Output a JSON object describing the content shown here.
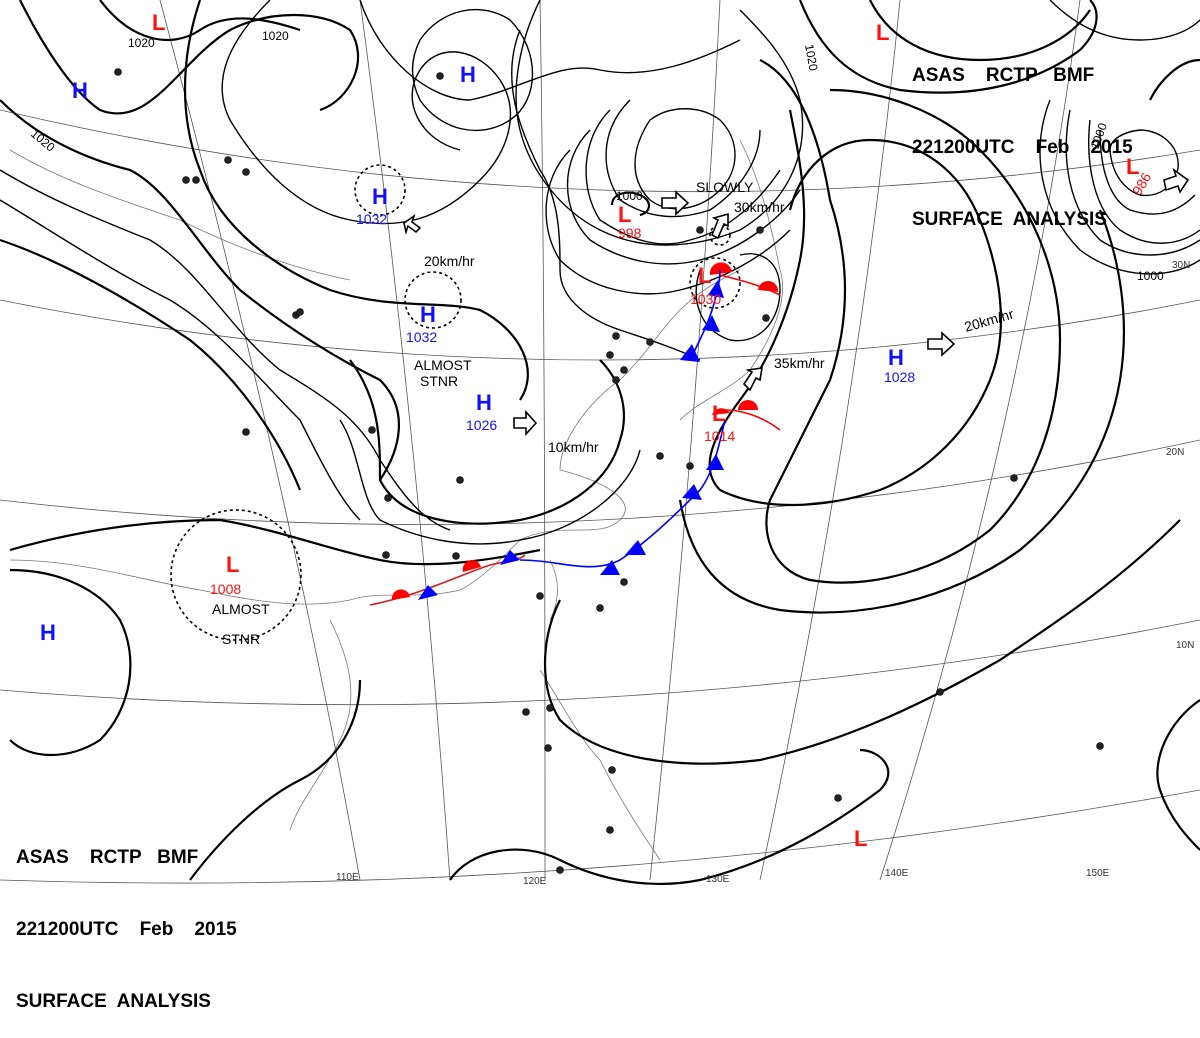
{
  "header": {
    "line1": "ASAS    RCTP   BMF",
    "line2": "221200UTC    Feb    2015",
    "line3": "SURFACE  ANALYSIS"
  },
  "grid_labels": {
    "lon": [
      "110E",
      "120E",
      "130E",
      "140E",
      "150E"
    ],
    "lat": [
      "30N",
      "20N",
      "10N"
    ]
  },
  "isobar_labels": [
    "1020",
    "1020",
    "1020",
    "1020",
    "1000",
    "1000",
    "1000"
  ],
  "systems": [
    {
      "type": "L",
      "value": ""
    },
    {
      "type": "L",
      "value": ""
    },
    {
      "type": "L",
      "value": ""
    },
    {
      "type": "L",
      "value": "998"
    },
    {
      "type": "L",
      "value": "1030"
    },
    {
      "type": "L",
      "value": "1014"
    },
    {
      "type": "L",
      "value": "986"
    },
    {
      "type": "L",
      "value": "1008"
    },
    {
      "type": "H",
      "value": ""
    },
    {
      "type": "H",
      "value": ""
    },
    {
      "type": "H",
      "value": "1032"
    },
    {
      "type": "H",
      "value": "1032"
    },
    {
      "type": "H",
      "value": "1026"
    },
    {
      "type": "H",
      "value": "1028"
    },
    {
      "type": "H",
      "value": ""
    }
  ],
  "notes": [
    "20km/hr",
    "ALMOST",
    "STNR",
    "10km/hr",
    "SLOWLY",
    "30km/hr",
    "35km/hr",
    "20km/hr",
    "ALMOST",
    "STNR"
  ],
  "colors": {
    "high": "#1010ff",
    "low": "#ff1010",
    "warm_front": "#ff0000",
    "cold_front": "#0000ff",
    "isobar": "#000000"
  }
}
